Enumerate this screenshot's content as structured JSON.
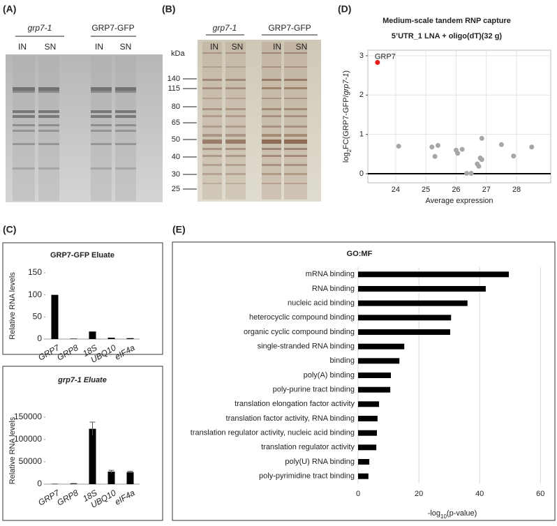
{
  "panels": {
    "a": "(A)",
    "b": "(B)",
    "c": "(C)",
    "d": "(D)",
    "e": "(E)"
  },
  "gel_a": {
    "groups": [
      "grp7-1",
      "GRP7-GFP"
    ],
    "lanes": [
      "IN",
      "SN",
      "IN",
      "SN"
    ]
  },
  "gel_b": {
    "groups": [
      "grp7-1",
      "GRP7-GFP"
    ],
    "lanes": [
      "IN",
      "SN",
      "IN",
      "SN"
    ],
    "marker_unit": "kDa",
    "markers": [
      140,
      115,
      80,
      65,
      50,
      40,
      30,
      25
    ]
  },
  "chart_data": [
    {
      "type": "scatter",
      "title": [
        "Medium-scale tandem RNP capture",
        "5’UTR_1 LNA + oligo(dT)(32 g)"
      ],
      "x_label": "Average expression",
      "y_label": [
        "log",
        "2",
        "FC(GRP7-GFP/",
        "grp7-1",
        ")"
      ],
      "x": [
        24.1,
        25.2,
        25.3,
        25.4,
        26.0,
        26.05,
        26.2,
        26.35,
        26.5,
        26.7,
        26.75,
        26.8,
        26.85,
        26.85,
        27.5,
        27.9,
        28.5
      ],
      "values": [
        0.7,
        0.68,
        0.44,
        0.72,
        0.6,
        0.52,
        0.62,
        0.01,
        0.01,
        0.25,
        0.19,
        0.4,
        0.36,
        0.9,
        0.74,
        0.45,
        0.68
      ],
      "color": "#a6a6a6",
      "highlight": {
        "label": "GRP7",
        "x": 23.4,
        "y": 2.83,
        "color": "#e41a1c"
      },
      "hline": 0,
      "xlim": [
        23.08,
        29.13
      ],
      "xticks": [
        24,
        25,
        26,
        27,
        28
      ],
      "ylim": [
        -0.23,
        3.14
      ],
      "yticks": [
        0,
        1,
        2,
        3
      ],
      "grid": true
    },
    {
      "type": "bar",
      "title": "GRP7-GFP Eluate",
      "y_label": "Relative RNA levels",
      "categories": [
        "GRP7",
        "GRP8",
        "18S",
        "UBQ10",
        "eIF4a"
      ],
      "values": [
        100,
        1,
        17,
        3,
        2
      ],
      "color": "#000000",
      "ylim": [
        0,
        150
      ],
      "yticks": [
        0,
        50,
        100,
        150
      ]
    },
    {
      "type": "bar",
      "title": "grp7-1 Eluate",
      "y_label": "Relative RNA levels",
      "categories": [
        "GRP7",
        "GRP8",
        "18S",
        "UBQ10",
        "eIF4a"
      ],
      "values": [
        400,
        1200,
        124000,
        28000,
        27000
      ],
      "errors": [
        0,
        300,
        15000,
        3000,
        2000
      ],
      "color": "#000000",
      "ylim": [
        0,
        150000
      ],
      "yticks": [
        0,
        50000,
        100000,
        150000
      ]
    },
    {
      "type": "barh",
      "title": "GO:MF",
      "x_label": [
        "-log",
        "10",
        "(p-value)"
      ],
      "categories": [
        "mRNA binding",
        "RNA binding",
        "nucleic acid binding",
        "heterocyclic compound binding",
        "organic cyclic compound binding",
        "single-stranded RNA binding",
        "binding",
        "poly(A) binding",
        "poly-purine tract binding",
        "translation elongation factor activity",
        "translation factor activity, RNA binding",
        "translation regulator activity, nucleic acid binding",
        "translation regulator activity",
        "poly(U) RNA binding",
        "poly-pyrimidine tract binding"
      ],
      "values": [
        49.6,
        42,
        36,
        30.6,
        30.3,
        15.2,
        13.6,
        10.8,
        10.6,
        6.9,
        6.4,
        6.2,
        6.0,
        3.7,
        3.4
      ],
      "color": "#000000",
      "xlim": [
        0,
        62
      ],
      "xticks": [
        0,
        20,
        40,
        60
      ],
      "grid": true
    }
  ]
}
